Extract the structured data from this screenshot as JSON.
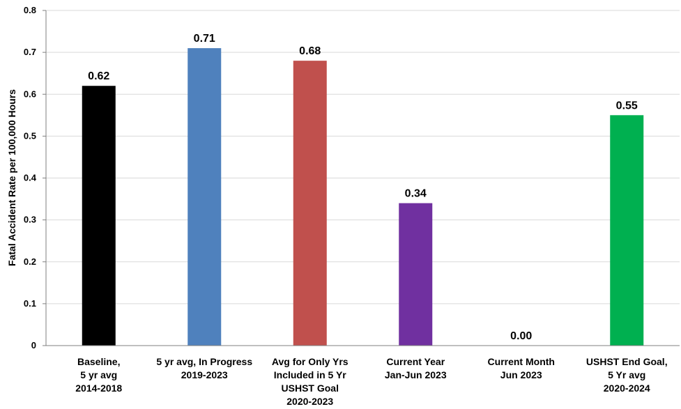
{
  "chart_data": {
    "type": "bar",
    "title": "",
    "xlabel": "",
    "ylabel": "Fatal Accident Rate per 100,000 Hours",
    "ylim": [
      0,
      0.8
    ],
    "yticks": [
      "0",
      "0.1",
      "0.2",
      "0.3",
      "0.4",
      "0.5",
      "0.6",
      "0.7",
      "0.8"
    ],
    "grid": true,
    "legend": "none",
    "categories": [
      [
        "Baseline,",
        "5 yr avg",
        "2014-2018"
      ],
      [
        "5 yr avg, In Progress",
        "2019-2023"
      ],
      [
        "Avg for Only Yrs",
        "Included in 5 Yr",
        "USHST Goal",
        "2020-2023"
      ],
      [
        "Current Year",
        "Jan-Jun 2023"
      ],
      [
        "Current Month",
        "Jun 2023"
      ],
      [
        "USHST End Goal,",
        "5 Yr avg",
        "2020-2024"
      ]
    ],
    "values": [
      0.62,
      0.71,
      0.68,
      0.34,
      0.0,
      0.55
    ],
    "data_labels": [
      "0.62",
      "0.71",
      "0.68",
      "0.34",
      "0.00",
      "0.55"
    ],
    "colors": [
      "#000000",
      "#4F81BD",
      "#C0504D",
      "#7030A0",
      "#FFFFFF",
      "#00B050"
    ]
  }
}
